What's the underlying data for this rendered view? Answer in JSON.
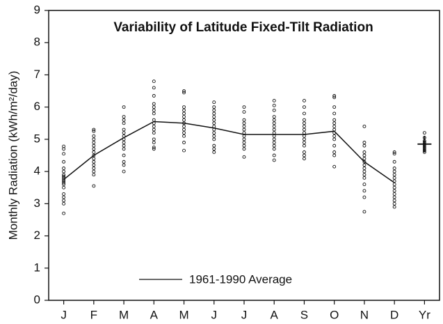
{
  "chart_data": {
    "type": "line",
    "title": "Variability of Latitude Fixed-Tilt Radiation",
    "y_label": "Monthly Radiation (kWh/m²/day)",
    "categories": [
      "J",
      "F",
      "M",
      "A",
      "M",
      "J",
      "J",
      "A",
      "S",
      "O",
      "N",
      "D",
      "Yr"
    ],
    "series": [
      {
        "name": "1961-1990 Average",
        "color": "#111111",
        "values": [
          3.75,
          4.5,
          5.05,
          5.55,
          5.5,
          5.35,
          5.15,
          5.15,
          5.15,
          5.25,
          4.3,
          3.65,
          null
        ]
      }
    ],
    "annual_average": 4.85,
    "points": [
      [
        4.78,
        4.7,
        4.55,
        4.3,
        4.1,
        4.0,
        3.9,
        3.85,
        3.8,
        3.75,
        3.7,
        3.65,
        3.6,
        3.5,
        3.3,
        3.2,
        3.1,
        3.0,
        2.7
      ],
      [
        5.3,
        5.25,
        5.1,
        5.0,
        4.9,
        4.8,
        4.7,
        4.6,
        4.5,
        4.4,
        4.3,
        4.2,
        4.1,
        4.0,
        3.9,
        3.55
      ],
      [
        6.0,
        5.7,
        5.6,
        5.5,
        5.3,
        5.2,
        5.1,
        5.0,
        4.9,
        4.8,
        4.7,
        4.5,
        4.3,
        4.2,
        4.0
      ],
      [
        6.8,
        6.6,
        6.35,
        6.1,
        6.0,
        5.9,
        5.8,
        5.6,
        5.5,
        5.4,
        5.3,
        5.2,
        5.0,
        4.9,
        4.75,
        4.7
      ],
      [
        6.5,
        6.45,
        6.0,
        5.9,
        5.8,
        5.7,
        5.6,
        5.5,
        5.4,
        5.3,
        5.2,
        5.1,
        4.9,
        4.65
      ],
      [
        6.15,
        6.0,
        5.9,
        5.8,
        5.7,
        5.6,
        5.5,
        5.4,
        5.3,
        5.2,
        5.1,
        5.0,
        4.8,
        4.7,
        4.6
      ],
      [
        6.0,
        5.85,
        5.6,
        5.5,
        5.4,
        5.3,
        5.2,
        5.1,
        5.0,
        4.9,
        4.8,
        4.7,
        4.45
      ],
      [
        6.2,
        6.05,
        5.9,
        5.7,
        5.6,
        5.5,
        5.4,
        5.3,
        5.2,
        5.1,
        5.0,
        4.9,
        4.8,
        4.7,
        4.5,
        4.35
      ],
      [
        6.2,
        6.0,
        5.8,
        5.6,
        5.5,
        5.4,
        5.3,
        5.2,
        5.1,
        5.0,
        4.9,
        4.8,
        4.6,
        4.5,
        4.4
      ],
      [
        6.35,
        6.3,
        6.0,
        5.8,
        5.6,
        5.5,
        5.4,
        5.3,
        5.2,
        5.1,
        5.0,
        4.8,
        4.6,
        4.5,
        4.15
      ],
      [
        5.4,
        4.9,
        4.8,
        4.6,
        4.5,
        4.4,
        4.3,
        4.2,
        4.1,
        4.0,
        3.9,
        3.8,
        3.6,
        3.4,
        3.2,
        2.75
      ],
      [
        4.6,
        4.55,
        4.3,
        4.1,
        4.0,
        3.9,
        3.8,
        3.7,
        3.6,
        3.5,
        3.4,
        3.3,
        3.2,
        3.1,
        3.0,
        2.9
      ],
      [
        5.2,
        5.05,
        4.95,
        4.9,
        4.85,
        4.8,
        4.75,
        4.7,
        4.65,
        4.6
      ]
    ],
    "ylim": [
      0,
      9
    ],
    "yticks": [
      0,
      1,
      2,
      3,
      4,
      5,
      6,
      7,
      8,
      9
    ],
    "grid": false
  }
}
